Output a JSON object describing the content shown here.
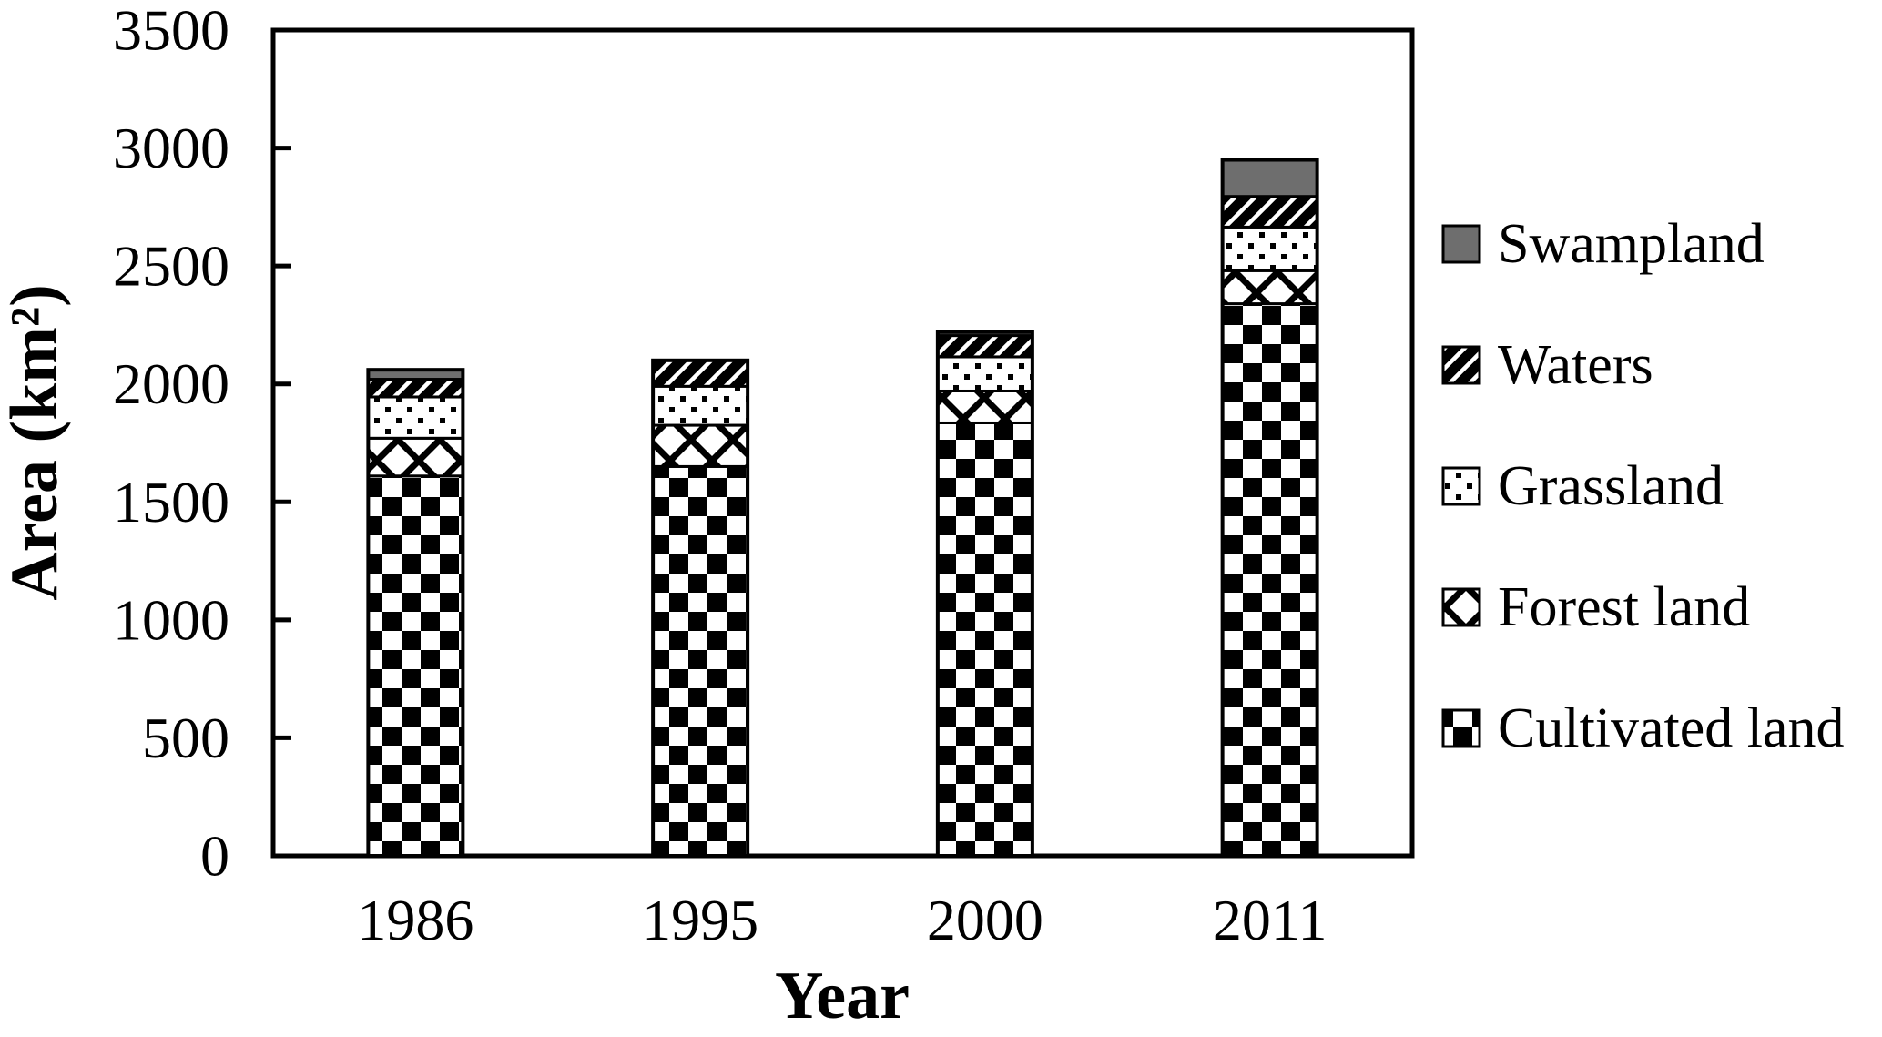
{
  "chart_data": {
    "type": "bar",
    "stacked": true,
    "title": "",
    "xlabel": "Year",
    "ylabel": "Area (km²)",
    "categories": [
      "1986",
      "1995",
      "2000",
      "2011"
    ],
    "series": [
      {
        "name": "Cultivated land",
        "pattern": "checker",
        "values": [
          1610,
          1650,
          1835,
          2340
        ]
      },
      {
        "name": "Forest land",
        "pattern": "crosshatch",
        "values": [
          160,
          175,
          135,
          140
        ]
      },
      {
        "name": "Grassland",
        "pattern": "dots",
        "values": [
          175,
          165,
          145,
          185
        ]
      },
      {
        "name": "Waters",
        "pattern": "stripes",
        "values": [
          75,
          110,
          90,
          130
        ]
      },
      {
        "name": "Swampland",
        "pattern": "solid",
        "values": [
          40,
          0,
          15,
          155
        ]
      }
    ],
    "ylim": [
      0,
      3500
    ],
    "ytick_step": 500,
    "yticks": [
      "0",
      "500",
      "1000",
      "1500",
      "2000",
      "2500",
      "3000",
      "3500"
    ],
    "legend_position": "right",
    "legend_order_top_to_bottom": [
      "Swampland",
      "Waters",
      "Grassland",
      "Forest land",
      "Cultivated land"
    ],
    "grid": false
  },
  "colors": {
    "ink": "#000000",
    "background": "#ffffff",
    "swampland_fill": "#6e6e6e",
    "pattern_background": "#ffffff"
  }
}
